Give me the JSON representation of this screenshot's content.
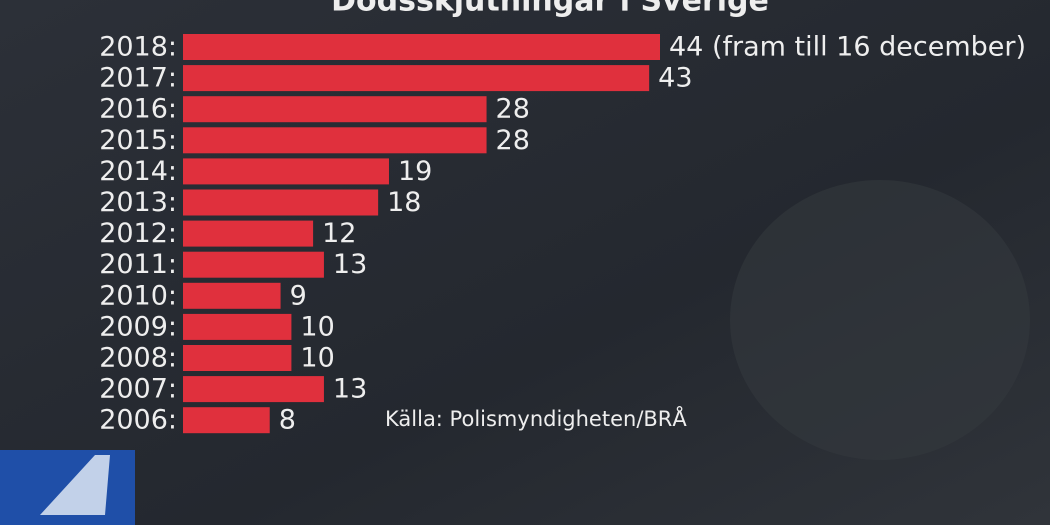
{
  "chart_data": {
    "type": "bar",
    "orientation": "horizontal",
    "title": "Dödsskjutningar i Sverige",
    "categories": [
      "2018:",
      "2017:",
      "2016:",
      "2015:",
      "2014:",
      "2013:",
      "2012:",
      "2011:",
      "2010:",
      "2009:",
      "2008:",
      "2007:",
      "2006:"
    ],
    "values": [
      44,
      43,
      28,
      28,
      19,
      18,
      12,
      13,
      9,
      10,
      10,
      13,
      8
    ],
    "value_labels": [
      "44 (fram till 16 december)",
      "43",
      "28",
      "28",
      "19",
      "18",
      "12",
      "13",
      "9",
      "10",
      "10",
      "13",
      "8"
    ],
    "color": "#e0303d",
    "annotation": "Källa: Polismyndigheten/BRÅ"
  }
}
